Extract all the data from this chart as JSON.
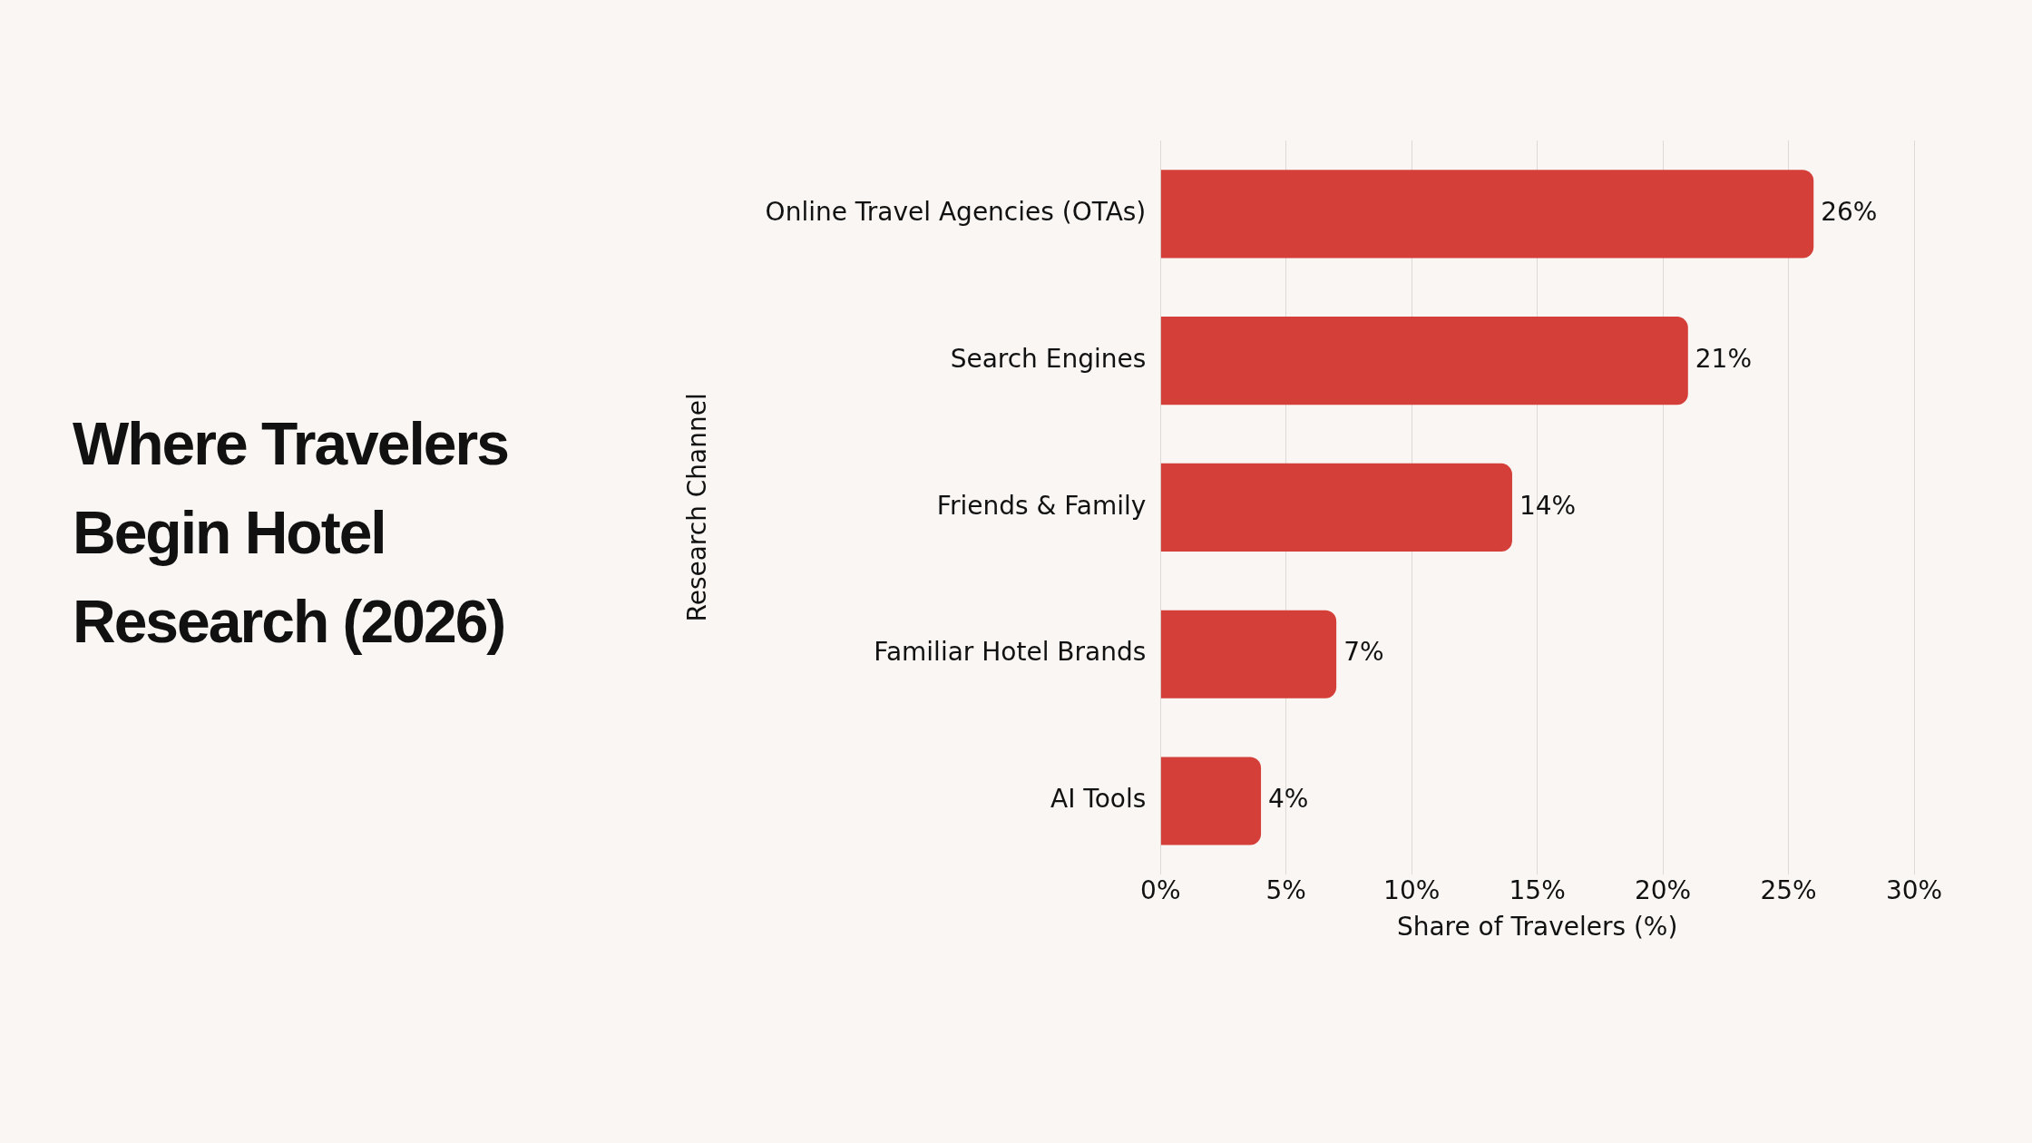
{
  "chart_data": {
    "type": "bar",
    "orientation": "horizontal",
    "title": "Where Travelers Begin Hotel Research (2026)",
    "xlabel": "Share of Travelers (%)",
    "ylabel": "Research Channel",
    "categories": [
      "Online Travel Agencies (OTAs)",
      "Search Engines",
      "Friends & Family",
      "Familiar Hotel Brands",
      "AI Tools"
    ],
    "values": [
      26,
      21,
      14,
      7,
      4
    ],
    "value_labels": [
      "26%",
      "21%",
      "14%",
      "7%",
      "4%"
    ],
    "color": "#d43f3a",
    "xlim": [
      0,
      30
    ],
    "xticks": [
      {
        "value": 0,
        "label": "0%"
      },
      {
        "value": 5,
        "label": "5%"
      },
      {
        "value": 10,
        "label": "10%"
      },
      {
        "value": 15,
        "label": "15%"
      },
      {
        "value": 20,
        "label": "20%"
      },
      {
        "value": 25,
        "label": "25%"
      },
      {
        "value": 30,
        "label": "30%"
      }
    ],
    "grid": "x",
    "legend": false
  }
}
